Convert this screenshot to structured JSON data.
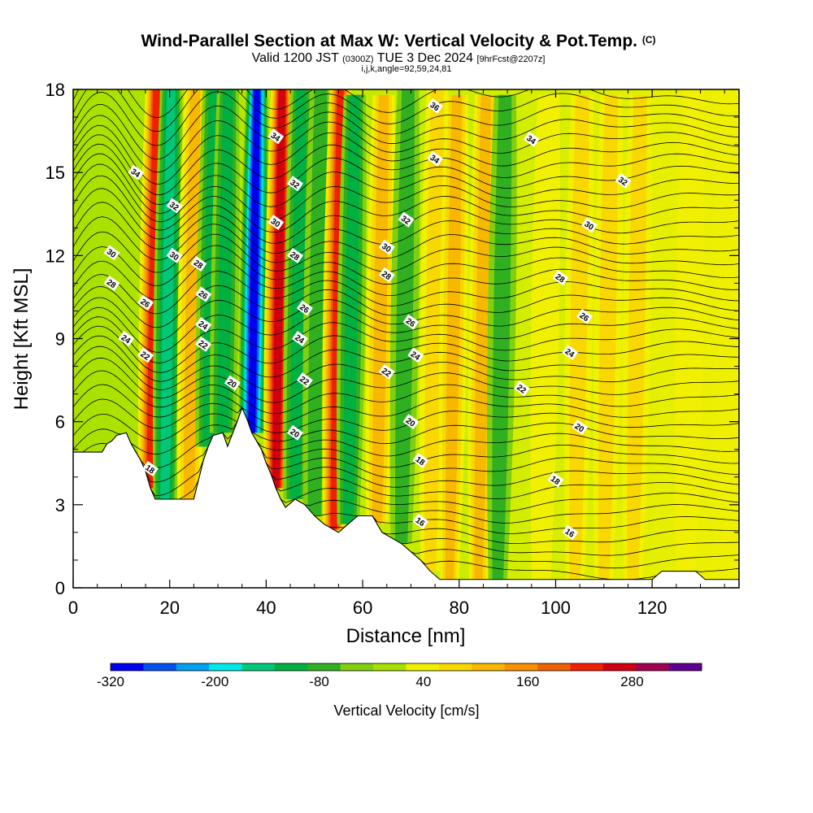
{
  "chart_data": {
    "type": "heatmap",
    "title": "Wind-Parallel Section at Max W: Vertical Velocity & Pot.Temp.",
    "title_mark": "(C)",
    "subtitle_main": "Valid 1200 JST",
    "subtitle_utc": "(0300Z)",
    "subtitle_date": "TUE 3 Dec 2024",
    "subtitle_fcst": "[9hrFcst@2207z]",
    "subtitle_ijk": "i,j,k,angle=92,59,24,81",
    "xlabel": "Distance [nm]",
    "ylabel": "Height [Kft MSL]",
    "xlim": [
      0,
      138
    ],
    "ylim": [
      0,
      18
    ],
    "x_ticks": [
      0,
      20,
      40,
      60,
      80,
      100,
      120
    ],
    "y_ticks": [
      0,
      3,
      6,
      9,
      12,
      15,
      18
    ],
    "colorbar": {
      "label": "Vertical Velocity [cm/s]",
      "tick_labels": [
        "-320",
        "-200",
        "-80",
        "40",
        "160",
        "280"
      ],
      "tick_values": [
        -320,
        -200,
        -80,
        40,
        160,
        280
      ],
      "range": [
        -320,
        360
      ],
      "colors": [
        "#0000f0",
        "#0050f0",
        "#00a0f0",
        "#00e8e8",
        "#00c878",
        "#00b040",
        "#30b020",
        "#80d010",
        "#a8e000",
        "#f0f000",
        "#f8d800",
        "#f8b800",
        "#f89000",
        "#f06000",
        "#f02000",
        "#d00010",
        "#a00050",
        "#600090"
      ]
    },
    "vertical_velocity_bands": [
      {
        "x": 16,
        "w": 260
      },
      {
        "x": 19,
        "w": -150
      },
      {
        "x": 24,
        "w": 140
      },
      {
        "x": 28,
        "w": -90
      },
      {
        "x": 31,
        "w": -110
      },
      {
        "x": 37,
        "w": -280
      },
      {
        "x": 42,
        "w": 300
      },
      {
        "x": 46,
        "w": -100
      },
      {
        "x": 50,
        "w": -60
      },
      {
        "x": 54,
        "w": 240
      },
      {
        "x": 57,
        "w": -90
      },
      {
        "x": 63,
        "w": 130
      },
      {
        "x": 68,
        "w": -70
      },
      {
        "x": 74,
        "w": 80
      },
      {
        "x": 78,
        "w": 120
      },
      {
        "x": 84,
        "w": 150
      },
      {
        "x": 88,
        "w": -50
      },
      {
        "x": 97,
        "w": 70
      },
      {
        "x": 104,
        "w": 80
      },
      {
        "x": 110,
        "w": 90
      },
      {
        "x": 116,
        "w": 100
      },
      {
        "x": 127,
        "w": 40
      }
    ],
    "theta_contour_labels": [
      "16",
      "18",
      "20",
      "22",
      "24",
      "26",
      "28",
      "30",
      "32",
      "34",
      "36"
    ],
    "theta_contour_label_positions": [
      {
        "x": 72,
        "y": 2.4,
        "t": "16"
      },
      {
        "x": 103,
        "y": 2.0,
        "t": "16"
      },
      {
        "x": 16,
        "y": 4.3,
        "t": "18"
      },
      {
        "x": 72,
        "y": 4.6,
        "t": "18"
      },
      {
        "x": 100,
        "y": 3.9,
        "t": "18"
      },
      {
        "x": 33,
        "y": 7.4,
        "t": "20"
      },
      {
        "x": 46,
        "y": 5.6,
        "t": "20"
      },
      {
        "x": 70,
        "y": 6.0,
        "t": "20"
      },
      {
        "x": 105,
        "y": 5.8,
        "t": "20"
      },
      {
        "x": 15,
        "y": 8.4,
        "t": "22"
      },
      {
        "x": 27,
        "y": 8.8,
        "t": "22"
      },
      {
        "x": 48,
        "y": 7.5,
        "t": "22"
      },
      {
        "x": 65,
        "y": 7.8,
        "t": "22"
      },
      {
        "x": 93,
        "y": 7.2,
        "t": "22"
      },
      {
        "x": 11,
        "y": 9.0,
        "t": "24"
      },
      {
        "x": 27,
        "y": 9.5,
        "t": "24"
      },
      {
        "x": 47,
        "y": 9.0,
        "t": "24"
      },
      {
        "x": 71,
        "y": 8.4,
        "t": "24"
      },
      {
        "x": 103,
        "y": 8.5,
        "t": "24"
      },
      {
        "x": 15,
        "y": 10.3,
        "t": "26"
      },
      {
        "x": 27,
        "y": 10.6,
        "t": "26"
      },
      {
        "x": 48,
        "y": 10.1,
        "t": "26"
      },
      {
        "x": 70,
        "y": 9.6,
        "t": "26"
      },
      {
        "x": 106,
        "y": 9.8,
        "t": "26"
      },
      {
        "x": 8,
        "y": 11.0,
        "t": "28"
      },
      {
        "x": 26,
        "y": 11.7,
        "t": "28"
      },
      {
        "x": 46,
        "y": 12.0,
        "t": "28"
      },
      {
        "x": 65,
        "y": 11.3,
        "t": "28"
      },
      {
        "x": 101,
        "y": 11.2,
        "t": "28"
      },
      {
        "x": 8,
        "y": 12.1,
        "t": "30"
      },
      {
        "x": 21,
        "y": 12.0,
        "t": "30"
      },
      {
        "x": 42,
        "y": 13.2,
        "t": "30"
      },
      {
        "x": 65,
        "y": 12.3,
        "t": "30"
      },
      {
        "x": 107,
        "y": 13.1,
        "t": "30"
      },
      {
        "x": 21,
        "y": 13.8,
        "t": "32"
      },
      {
        "x": 46,
        "y": 14.6,
        "t": "32"
      },
      {
        "x": 69,
        "y": 13.3,
        "t": "32"
      },
      {
        "x": 114,
        "y": 14.7,
        "t": "32"
      },
      {
        "x": 13,
        "y": 15.0,
        "t": "34"
      },
      {
        "x": 42,
        "y": 16.3,
        "t": "34"
      },
      {
        "x": 75,
        "y": 15.5,
        "t": "34"
      },
      {
        "x": 95,
        "y": 16.2,
        "t": "34"
      },
      {
        "x": 75,
        "y": 17.4,
        "t": "36"
      }
    ],
    "terrain_kft": [
      {
        "x": 0,
        "y": 4.9
      },
      {
        "x": 6,
        "y": 4.9
      },
      {
        "x": 7,
        "y": 5.2
      },
      {
        "x": 8,
        "y": 5.3
      },
      {
        "x": 9,
        "y": 5.5
      },
      {
        "x": 11,
        "y": 5.6
      },
      {
        "x": 12,
        "y": 5.2
      },
      {
        "x": 13,
        "y": 4.9
      },
      {
        "x": 14,
        "y": 4.6
      },
      {
        "x": 15,
        "y": 4.2
      },
      {
        "x": 16,
        "y": 3.6
      },
      {
        "x": 17,
        "y": 3.2
      },
      {
        "x": 25,
        "y": 3.2
      },
      {
        "x": 26,
        "y": 3.9
      },
      {
        "x": 27,
        "y": 4.6
      },
      {
        "x": 28,
        "y": 5.1
      },
      {
        "x": 29,
        "y": 5.5
      },
      {
        "x": 31,
        "y": 5.6
      },
      {
        "x": 32,
        "y": 5.1
      },
      {
        "x": 34,
        "y": 6.0
      },
      {
        "x": 35,
        "y": 6.5
      },
      {
        "x": 36,
        "y": 6.1
      },
      {
        "x": 37,
        "y": 5.6
      },
      {
        "x": 39,
        "y": 5.0
      },
      {
        "x": 40,
        "y": 4.5
      },
      {
        "x": 41,
        "y": 4.1
      },
      {
        "x": 42,
        "y": 3.6
      },
      {
        "x": 43,
        "y": 3.2
      },
      {
        "x": 44,
        "y": 2.9
      },
      {
        "x": 46,
        "y": 3.2
      },
      {
        "x": 48,
        "y": 3.0
      },
      {
        "x": 50,
        "y": 2.6
      },
      {
        "x": 52,
        "y": 2.3
      },
      {
        "x": 55,
        "y": 2.0
      },
      {
        "x": 57,
        "y": 2.3
      },
      {
        "x": 59,
        "y": 2.6
      },
      {
        "x": 62,
        "y": 2.6
      },
      {
        "x": 64,
        "y": 2.0
      },
      {
        "x": 66,
        "y": 1.8
      },
      {
        "x": 68,
        "y": 1.6
      },
      {
        "x": 70,
        "y": 1.3
      },
      {
        "x": 72,
        "y": 1.0
      },
      {
        "x": 74,
        "y": 0.6
      },
      {
        "x": 76,
        "y": 0.3
      },
      {
        "x": 120,
        "y": 0.3
      },
      {
        "x": 122,
        "y": 0.6
      },
      {
        "x": 129,
        "y": 0.6
      },
      {
        "x": 131,
        "y": 0.3
      },
      {
        "x": 138,
        "y": 0.3
      }
    ]
  }
}
